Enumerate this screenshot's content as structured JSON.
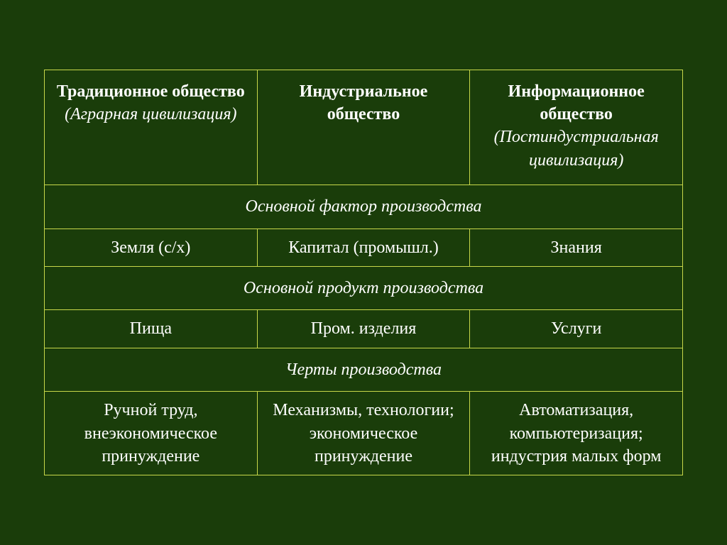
{
  "structure_type": "table",
  "columns": 3,
  "background_color": "#1a3d0a",
  "border_color": "#c8d84a",
  "text_color": "#ffffff",
  "header_fontsize": 24,
  "cell_fontsize": 24,
  "font_family": "Georgia, Times New Roman, serif",
  "header": {
    "col1_bold": "Традиционное общество",
    "col1_italic": "(Аграрная цивилизация)",
    "col2_bold": "Индустриальное общество",
    "col3_bold": "Информационное общество",
    "col3_italic": "(Постиндустриальная цивилизация)"
  },
  "sections": {
    "s1_title": "Основной фактор производства",
    "s1_c1": "Земля (с/х)",
    "s1_c2": "Капитал (промышл.)",
    "s1_c3": "Знания",
    "s2_title": "Основной продукт производства",
    "s2_c1": "Пища",
    "s2_c2": "Пром. изделия",
    "s2_c3": "Услуги",
    "s3_title": "Черты производства",
    "s3_c1": "Ручной труд, внеэкономическое принуждение",
    "s3_c2": "Механизмы, технологии; экономическое принуждение",
    "s3_c3": "Автоматизация, компьютеризация; индустрия малых форм"
  }
}
